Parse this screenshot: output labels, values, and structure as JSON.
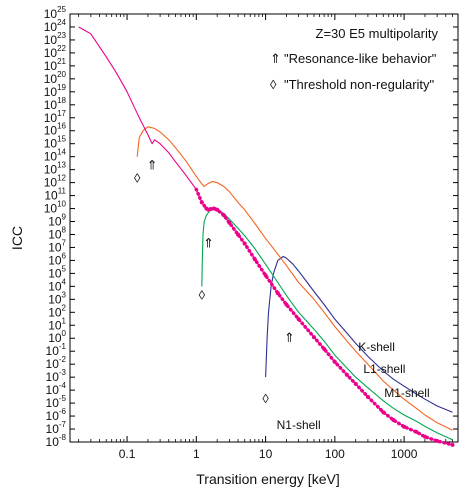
{
  "chart_data": {
    "type": "line",
    "title": "Z=30 E5 multipolarity",
    "xlabel": "Transition energy [keV]",
    "ylabel": "ICC",
    "x_scale": "log",
    "y_scale": "log",
    "xlim": [
      0.015,
      6000
    ],
    "ylim": [
      1e-08,
      1e+25
    ],
    "grid": false,
    "x_ticks": [
      {
        "value": 0.1,
        "label": "0.1"
      },
      {
        "value": 1,
        "label": "1"
      },
      {
        "value": 10,
        "label": "10"
      },
      {
        "value": 100,
        "label": "100"
      },
      {
        "value": 1000,
        "label": "1000"
      }
    ],
    "y_tick_exponents": [
      -8,
      -7,
      -6,
      -5,
      -4,
      -3,
      -2,
      -1,
      0,
      1,
      2,
      3,
      4,
      5,
      6,
      7,
      8,
      9,
      10,
      11,
      12,
      13,
      14,
      15,
      16,
      17,
      18,
      19,
      20,
      21,
      22,
      23,
      24,
      25
    ],
    "y_tick_base": "10",
    "legend": [
      {
        "symbol": "⇑",
        "text": "\"Resonance-like behavior\""
      },
      {
        "symbol": "◊",
        "text": "\"Threshold non-regularity\""
      }
    ],
    "series": [
      {
        "name": "K-shell",
        "color": "#2e3192",
        "x": [
          10,
          10.5,
          11,
          12,
          13,
          15,
          18,
          20,
          25,
          30,
          40,
          50,
          70,
          100,
          150,
          200,
          300,
          500,
          700,
          1000,
          1500,
          2000,
          3000,
          5000
        ],
        "y": [
          0.001,
          1,
          100.0,
          10000.0,
          100000.0,
          1000000.0,
          2000000.0,
          1500000.0,
          500000.0,
          150000.0,
          20000.0,
          4000.0,
          400.0,
          30,
          2.5,
          0.4,
          0.04,
          0.003,
          0.0007,
          0.0002,
          5e-05,
          2e-05,
          6e-06,
          2e-06
        ]
      },
      {
        "name": "L1-shell",
        "color": "#00a651",
        "x": [
          1.2,
          1.22,
          1.25,
          1.3,
          1.4,
          1.6,
          1.8,
          2,
          2.5,
          3,
          4,
          5,
          7,
          10,
          15,
          20,
          30,
          50,
          70,
          100,
          150,
          200,
          300,
          500,
          700,
          1000,
          1500,
          2000,
          3000,
          5000
        ],
        "y": [
          10000.0,
          1000000.0,
          100000000.0,
          1000000000.0,
          3000000000.0,
          8000000000.0,
          10000000000.0,
          9000000000.0,
          4000000000.0,
          1500000000.0,
          300000000.0,
          80000000.0,
          8000000.0,
          500000.0,
          20000.0,
          2000.0,
          100.0,
          5,
          0.6,
          0.05,
          0.005,
          0.001,
          0.00015,
          1.5e-05,
          4e-06,
          1.2e-06,
          4e-07,
          1.6e-07,
          5e-08,
          1.5e-08
        ]
      },
      {
        "name": "M1-shell",
        "color": "#f26522",
        "x": [
          0.14,
          0.15,
          0.17,
          0.2,
          0.25,
          0.3,
          0.4,
          0.5,
          0.7,
          1,
          1.2,
          1.3,
          1.5,
          1.7,
          2,
          2.5,
          3,
          4,
          5,
          7,
          10,
          15,
          20,
          30,
          50,
          70,
          100,
          150,
          200,
          300,
          500,
          700,
          1000,
          1500,
          2000,
          3000,
          5000
        ],
        "y": [
          100000000000000.0,
          3000000000000000.0,
          1e+16,
          2e+16,
          1.5e+16,
          8000000000000000.0,
          2000000000000000.0,
          500000000000000.0,
          50000000000000.0,
          3000000000000.0,
          800000000000.0,
          500000000000.0,
          900000000000.0,
          1200000000000.0,
          1000000000000.0,
          500000000000.0,
          200000000000.0,
          30000000000.0,
          8000000000.0,
          700000000.0,
          50000000.0,
          3000000.0,
          400000.0,
          20000.0,
          1000.0,
          100,
          8,
          0.6,
          0.1,
          0.01,
          0.0005,
          0.0001,
          2e-05,
          4e-06,
          1.2e-06,
          3e-07,
          8e-08
        ]
      },
      {
        "name": "N1-shell",
        "color": "#ec008c",
        "x": [
          0.02,
          0.03,
          0.05,
          0.07,
          0.1,
          0.15,
          0.2,
          0.23,
          0.25,
          0.3,
          0.4,
          0.5,
          0.7,
          1,
          1.2,
          1.4,
          1.5,
          1.6,
          1.8,
          2,
          2.5,
          3,
          4,
          5,
          7,
          10,
          15,
          20,
          30,
          50,
          70,
          100,
          150,
          200,
          300,
          500,
          700,
          1000,
          1500,
          2000,
          3000,
          5000
        ],
        "y": [
          1e+24,
          3e+23,
          5e+21,
          3e+20,
          1e+19,
          1e+17,
          5000000000000000.0,
          1000000000000000.0,
          2000000000000000.0,
          1000000000000000.0,
          200000000000000.0,
          40000000000000.0,
          4000000000000.0,
          300000000000.0,
          30000000000.0,
          10000000000.0,
          8000000000.0,
          9000000000.0,
          10000000000.0,
          8000000000.0,
          3000000000.0,
          800000000.0,
          100000000.0,
          20000000.0,
          1200000.0,
          70000.0,
          3000.0,
          400.0,
          30,
          1.2,
          0.15,
          0.015,
          0.0015,
          0.0003,
          3e-05,
          2e-06,
          5e-07,
          1.5e-07,
          6e-08,
          2.5e-08,
          1.2e-08,
          6e-09
        ]
      }
    ],
    "resonance_markers": [
      {
        "x": 0.23,
        "y": 10000000000000.0
      },
      {
        "x": 1.5,
        "y": 10000000.0
      },
      {
        "x": 22,
        "y": 0.5
      }
    ],
    "threshold_markers": [
      {
        "x": 0.14,
        "y": 1000000000000.0
      },
      {
        "x": 1.2,
        "y": 1000.0
      },
      {
        "x": 10,
        "y": 1e-05
      }
    ],
    "shell_labels": [
      {
        "text": "K-shell",
        "x": 400,
        "y": 0.1
      },
      {
        "text": "L1-shell",
        "x": 520,
        "y": 0.002
      },
      {
        "text": "M1-shell",
        "x": 1100,
        "y": 3e-05
      },
      {
        "text": "N1-shell",
        "x": 30,
        "y": 1e-07
      }
    ]
  }
}
